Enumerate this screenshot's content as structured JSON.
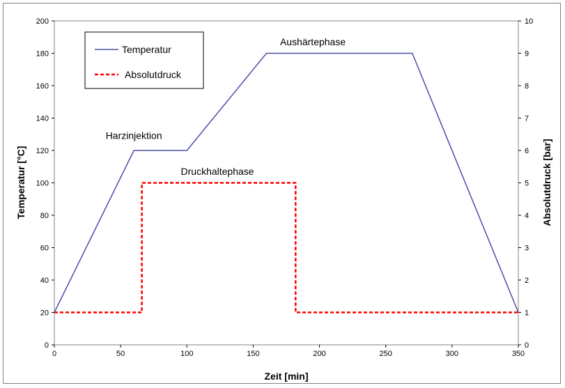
{
  "chart_data": {
    "type": "line",
    "xlabel": "Zeit [min]",
    "ylabel_left": "Temperatur [°C]",
    "ylabel_right": "Absolutdruck [bar]",
    "xlim": [
      0,
      350
    ],
    "ylim_left": [
      0,
      200
    ],
    "ylim_right": [
      0,
      10
    ],
    "x_ticks": [
      "0",
      "50",
      "100",
      "150",
      "200",
      "250",
      "300",
      "350"
    ],
    "y_left_ticks": [
      "0",
      "20",
      "40",
      "60",
      "80",
      "100",
      "120",
      "140",
      "160",
      "180",
      "200"
    ],
    "y_right_ticks": [
      "0",
      "1",
      "2",
      "3",
      "4",
      "5",
      "6",
      "7",
      "8",
      "9",
      "10"
    ],
    "grid": false,
    "legend_position": "top-left",
    "series": [
      {
        "name": "Temperatur",
        "axis": "left",
        "color": "#4a4fa8",
        "style": "solid",
        "x": [
          0,
          60,
          100,
          160,
          270,
          350
        ],
        "y": [
          20,
          120,
          120,
          180,
          180,
          20
        ]
      },
      {
        "name": "Absolutdruck",
        "axis": "right",
        "color": "#ff0000",
        "style": "dashed",
        "x": [
          0,
          66,
          66,
          182,
          182,
          350
        ],
        "y": [
          1,
          1,
          5,
          5,
          1,
          1
        ]
      }
    ],
    "annotations": [
      {
        "text": "Harzinjektion",
        "x": 60,
        "y": 127
      },
      {
        "text": "Druckhaltephase",
        "x": 123,
        "y": 105
      },
      {
        "text": "Aushärtephase",
        "x": 195,
        "y": 185
      }
    ]
  }
}
